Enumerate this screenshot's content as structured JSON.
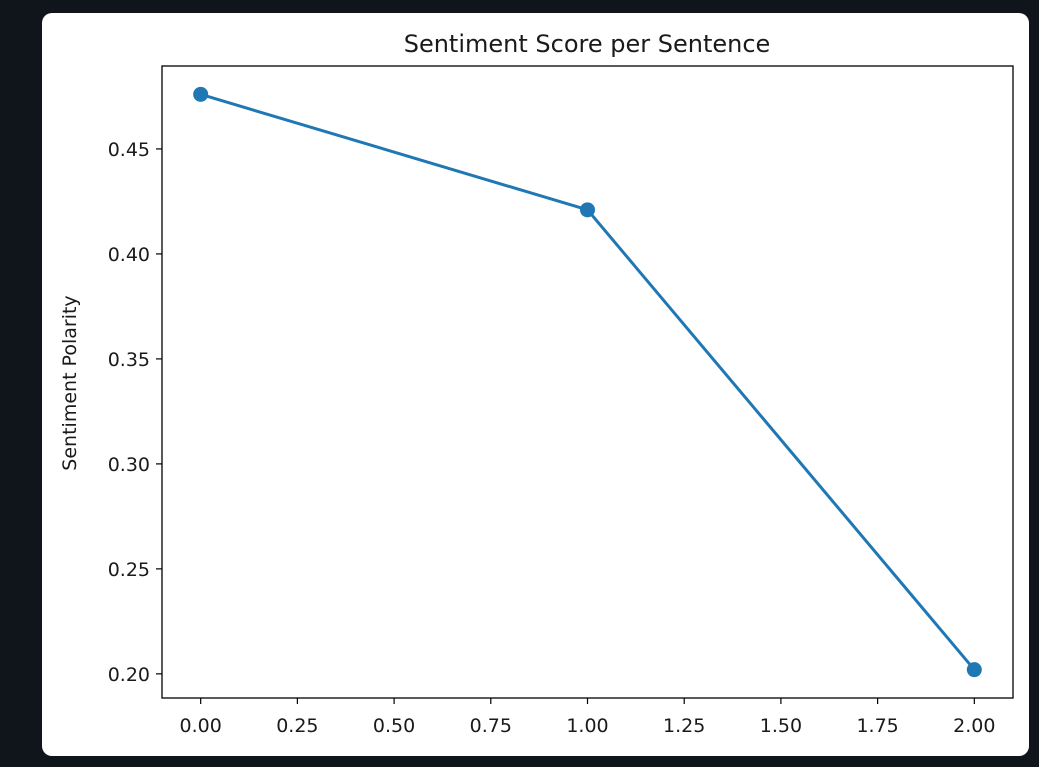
{
  "chart_data": {
    "type": "line",
    "title": "Sentiment Score per Sentence",
    "xlabel": "",
    "ylabel": "Sentiment Polarity",
    "x": [
      0,
      1,
      2
    ],
    "series": [
      {
        "values": [
          0.476,
          0.421,
          0.202
        ]
      }
    ],
    "xlim": [
      -0.1,
      2.1
    ],
    "ylim": [
      0.1885,
      0.4895
    ],
    "xticks": [
      "0.00",
      "0.25",
      "0.50",
      "0.75",
      "1.00",
      "1.25",
      "1.50",
      "1.75",
      "2.00"
    ],
    "yticks": [
      "0.20",
      "0.25",
      "0.30",
      "0.35",
      "0.40",
      "0.45"
    ],
    "grid": false,
    "line_color": "#1f77b4",
    "marker": "circle"
  }
}
